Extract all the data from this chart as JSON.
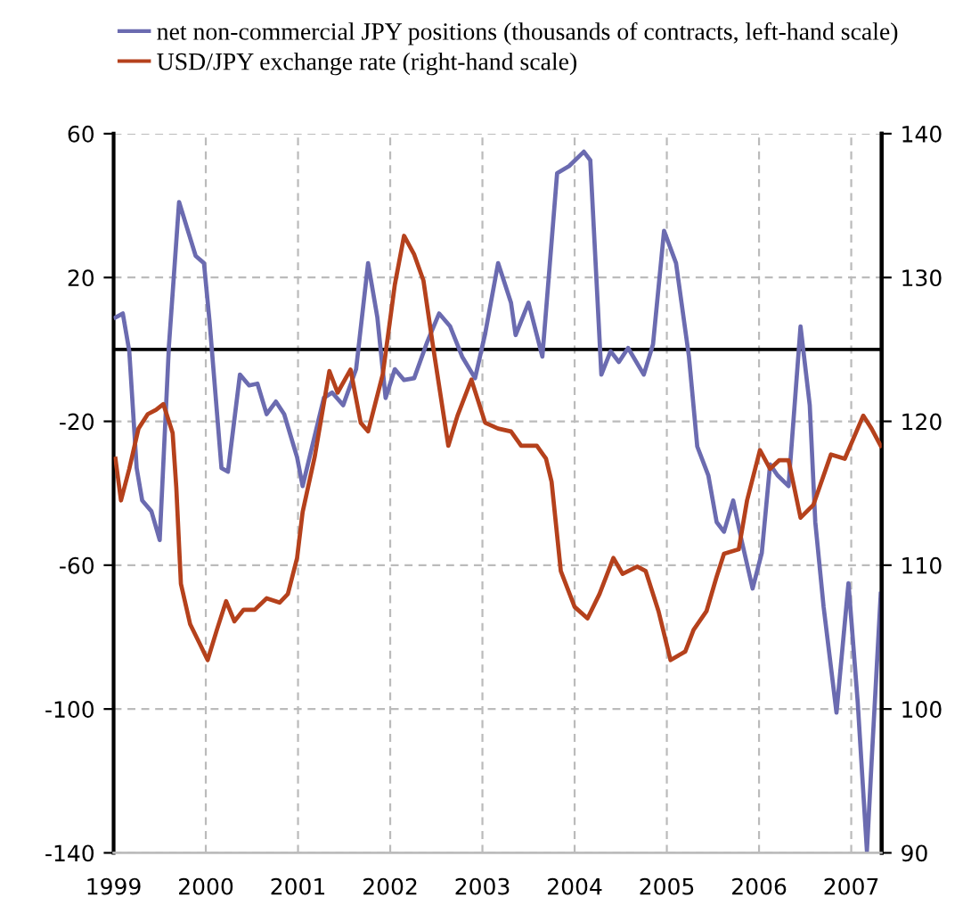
{
  "chart_data": {
    "type": "line",
    "xlim": [
      1999,
      2007.33
    ],
    "xticks": [
      1999,
      2000,
      2001,
      2002,
      2003,
      2004,
      2005,
      2006,
      2007
    ],
    "ylim": [
      -140,
      60
    ],
    "yticks": [
      -140,
      -100,
      -60,
      -20,
      20,
      60
    ],
    "y2lim": [
      90,
      140
    ],
    "y2ticks": [
      90,
      100,
      110,
      120,
      130,
      140
    ],
    "grid": true,
    "legend": "top",
    "line_style": "solid",
    "marker": "none",
    "ref_lines": [
      {
        "axis": "y",
        "value": 0,
        "color": "#000000",
        "line_style": "solid"
      }
    ],
    "series": [
      {
        "name": "net non-commercial JPY positions (thousands of contracts, left-hand scale)",
        "color": "#6b6bb0",
        "x": [
          1999.02,
          1999.1,
          1999.17,
          1999.25,
          1999.31,
          1999.41,
          1999.5,
          1999.6,
          1999.71,
          1999.89,
          1999.98,
          2000.04,
          2000.17,
          2000.24,
          2000.37,
          2000.47,
          2000.56,
          2000.66,
          2000.76,
          2000.85,
          2000.99,
          2001.05,
          2001.28,
          2001.37,
          2001.49,
          2001.63,
          2001.76,
          2001.86,
          2001.95,
          2002.05,
          2002.15,
          2002.26,
          2002.4,
          2002.53,
          2002.65,
          2002.78,
          2002.92,
          2003.03,
          2003.17,
          2003.31,
          2003.36,
          2003.5,
          2003.65,
          2003.81,
          2003.94,
          2004.1,
          2004.17,
          2004.29,
          2004.39,
          2004.48,
          2004.58,
          2004.75,
          2004.85,
          2004.97,
          2005.1,
          2005.24,
          2005.33,
          2005.45,
          2005.54,
          2005.62,
          2005.72,
          2005.81,
          2005.93,
          2006.03,
          2006.12,
          2006.2,
          2006.32,
          2006.45,
          2006.55,
          2006.61,
          2006.7,
          2006.84,
          2006.97,
          2007.07,
          2007.17,
          2007.22,
          2007.32
        ],
        "values": [
          8.9,
          10,
          -0.5,
          -33,
          -42,
          -45,
          -53,
          1,
          41,
          26,
          24,
          8,
          -33,
          -34,
          -7,
          -10,
          -9.5,
          -18,
          -14.5,
          -18,
          -30,
          -38,
          -13.5,
          -12,
          -15.5,
          -5.5,
          24,
          9,
          -13.5,
          -5.5,
          -8.5,
          -8,
          2,
          10,
          6.4,
          -2,
          -8,
          4.4,
          24,
          13,
          4,
          13,
          -2,
          49,
          51,
          55,
          52.6,
          -7,
          -0.5,
          -3.5,
          0.4,
          -7,
          1.4,
          33,
          24,
          -2,
          -27,
          -35,
          -48,
          -50.7,
          -42,
          -53,
          -66.5,
          -56.6,
          -32,
          -35,
          -38,
          6.4,
          -15.5,
          -48,
          -71.5,
          -101,
          -65,
          -98,
          -139.5,
          -115,
          -68
        ]
      },
      {
        "name": "USD/JPY exchange rate (right-hand scale)",
        "color": "#b5411c",
        "axis": "y2",
        "x": [
          1999.02,
          1999.08,
          1999.17,
          1999.27,
          1999.37,
          1999.46,
          1999.54,
          1999.64,
          1999.68,
          1999.73,
          1999.83,
          1999.93,
          2000.02,
          2000.12,
          2000.22,
          2000.31,
          2000.41,
          2000.53,
          2000.66,
          2000.8,
          2000.89,
          2000.99,
          2001.05,
          2001.18,
          2001.34,
          2001.43,
          2001.57,
          2001.68,
          2001.76,
          2001.92,
          2002.05,
          2002.15,
          2002.26,
          2002.36,
          2002.46,
          2002.63,
          2002.73,
          2002.88,
          2003.03,
          2003.17,
          2003.31,
          2003.42,
          2003.59,
          2003.69,
          2003.75,
          2003.85,
          2004.0,
          2004.14,
          2004.27,
          2004.42,
          2004.52,
          2004.68,
          2004.77,
          2004.91,
          2005.04,
          2005.2,
          2005.29,
          2005.43,
          2005.54,
          2005.62,
          2005.78,
          2005.87,
          2006.01,
          2006.12,
          2006.22,
          2006.32,
          2006.45,
          2006.59,
          2006.78,
          2006.93,
          2007.13,
          2007.22,
          2007.32
        ],
        "values": [
          117.4,
          114.5,
          116.7,
          119.5,
          120.5,
          120.8,
          121.2,
          119.2,
          115.4,
          108.7,
          105.9,
          104.6,
          103.4,
          105.5,
          107.5,
          106.1,
          106.9,
          106.9,
          107.7,
          107.4,
          108,
          110.5,
          113.7,
          117.5,
          123.5,
          122,
          123.6,
          119.9,
          119.3,
          123.3,
          129.5,
          132.9,
          131.6,
          129.8,
          125.4,
          118.3,
          120.4,
          122.9,
          119.9,
          119.5,
          119.3,
          118.3,
          118.3,
          117.4,
          115.8,
          109.6,
          107.1,
          106.3,
          108,
          110.5,
          109.4,
          109.9,
          109.6,
          106.8,
          103.4,
          104,
          105.5,
          106.8,
          109.2,
          110.8,
          111.1,
          114.5,
          118,
          116.7,
          117.3,
          117.3,
          113.3,
          114.2,
          117.7,
          117.4,
          120.4,
          119.5,
          118.3
        ]
      }
    ]
  }
}
